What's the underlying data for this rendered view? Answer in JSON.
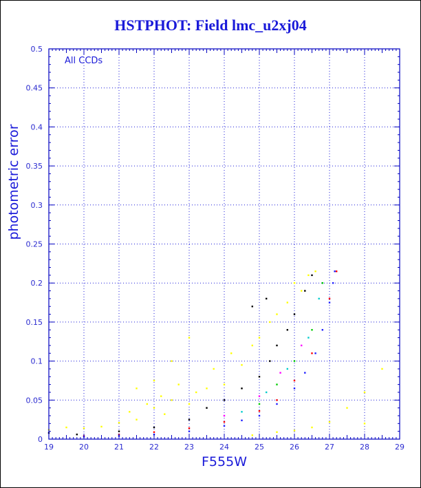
{
  "title": "HSTPHOT: Field lmc_u2xj04",
  "chart_data": {
    "type": "scatter",
    "title": "HSTPHOT: Field lmc_u2xj04",
    "xlabel": "F555W",
    "ylabel": "photometric error",
    "xlim": [
      19,
      29
    ],
    "ylim": [
      0,
      0.5
    ],
    "xticks": [
      "19",
      "20",
      "21",
      "22",
      "23",
      "24",
      "25",
      "26",
      "27",
      "28",
      "29"
    ],
    "yticks": [
      "0",
      "0.05",
      "0.1",
      "0.15",
      "0.2",
      "0.25",
      "0.3",
      "0.35",
      "0.4",
      "0.45",
      "0.5"
    ],
    "annotation": "All CCDs",
    "grid": true,
    "error_cap": 0.215,
    "series": [
      {
        "color": "#ffff00",
        "points": [
          [
            19.0,
            0.012
          ],
          [
            19.5,
            0.015
          ],
          [
            20.0,
            0.014
          ],
          [
            20.5,
            0.016
          ],
          [
            21.0,
            0.021
          ],
          [
            21.3,
            0.035
          ],
          [
            21.5,
            0.025
          ],
          [
            21.8,
            0.045
          ],
          [
            22.0,
            0.04
          ],
          [
            22.2,
            0.055
          ],
          [
            22.3,
            0.032
          ],
          [
            22.5,
            0.05
          ],
          [
            22.7,
            0.07
          ],
          [
            23.0,
            0.045
          ],
          [
            23.2,
            0.06
          ],
          [
            23.5,
            0.065
          ],
          [
            23.7,
            0.09
          ],
          [
            24.0,
            0.07
          ],
          [
            24.2,
            0.11
          ],
          [
            24.5,
            0.095
          ],
          [
            24.8,
            0.12
          ],
          [
            25.0,
            0.13
          ],
          [
            25.3,
            0.15
          ],
          [
            25.5,
            0.16
          ],
          [
            25.8,
            0.175
          ],
          [
            26.0,
            0.2
          ],
          [
            26.2,
            0.19
          ],
          [
            26.4,
            0.21
          ],
          [
            26.6,
            0.215
          ],
          [
            21.5,
            0.065
          ],
          [
            22.0,
            0.075
          ],
          [
            22.5,
            0.1
          ],
          [
            23.0,
            0.13
          ],
          [
            24.8,
            0.005
          ],
          [
            25.5,
            0.009
          ],
          [
            26.0,
            0.011
          ],
          [
            26.5,
            0.015
          ],
          [
            27.0,
            0.022
          ],
          [
            27.5,
            0.04
          ],
          [
            28.0,
            0.06
          ],
          [
            28.5,
            0.09
          ],
          [
            28.0,
            0.02
          ]
        ]
      },
      {
        "color": "#000000",
        "points": [
          [
            19.0,
            0.008
          ],
          [
            19.8,
            0.006
          ],
          [
            21.0,
            0.01
          ],
          [
            22.0,
            0.015
          ],
          [
            23.0,
            0.025
          ],
          [
            23.5,
            0.04
          ],
          [
            24.0,
            0.05
          ],
          [
            24.5,
            0.065
          ],
          [
            25.0,
            0.08
          ],
          [
            25.3,
            0.1
          ],
          [
            25.5,
            0.12
          ],
          [
            25.8,
            0.14
          ],
          [
            26.0,
            0.16
          ],
          [
            26.3,
            0.19
          ],
          [
            26.5,
            0.21
          ],
          [
            24.8,
            0.17
          ],
          [
            25.2,
            0.18
          ]
        ]
      },
      {
        "color": "#ff0000",
        "points": [
          [
            20.0,
            0.004
          ],
          [
            21.0,
            0.006
          ],
          [
            22.0,
            0.009
          ],
          [
            23.0,
            0.014
          ],
          [
            24.0,
            0.022
          ],
          [
            25.0,
            0.036
          ],
          [
            25.5,
            0.05
          ],
          [
            26.0,
            0.075
          ],
          [
            26.5,
            0.11
          ],
          [
            27.0,
            0.18
          ],
          [
            27.2,
            0.215
          ]
        ]
      },
      {
        "color": "#00cc00",
        "points": [
          [
            25.0,
            0.045
          ],
          [
            25.5,
            0.07
          ],
          [
            26.0,
            0.1
          ],
          [
            26.5,
            0.14
          ],
          [
            26.8,
            0.2
          ]
        ]
      },
      {
        "color": "#00cccc",
        "points": [
          [
            24.5,
            0.035
          ],
          [
            25.2,
            0.06
          ],
          [
            25.8,
            0.09
          ],
          [
            26.4,
            0.13
          ],
          [
            26.7,
            0.18
          ]
        ]
      },
      {
        "color": "#ff00ff",
        "points": [
          [
            24.0,
            0.03
          ],
          [
            25.0,
            0.055
          ],
          [
            25.6,
            0.085
          ],
          [
            26.2,
            0.12
          ]
        ]
      },
      {
        "color": "#1f1fff",
        "points": [
          [
            20.0,
            0.003
          ],
          [
            21.0,
            0.004
          ],
          [
            22.0,
            0.006
          ],
          [
            23.0,
            0.01
          ],
          [
            24.0,
            0.017
          ],
          [
            24.5,
            0.024
          ],
          [
            25.0,
            0.03
          ],
          [
            25.5,
            0.045
          ],
          [
            26.0,
            0.065
          ],
          [
            26.3,
            0.085
          ],
          [
            26.6,
            0.11
          ],
          [
            26.8,
            0.14
          ],
          [
            27.0,
            0.175
          ],
          [
            27.1,
            0.2
          ],
          [
            27.15,
            0.215
          ]
        ]
      }
    ]
  },
  "colors": {
    "axes": "#0000c0",
    "grid": "#1a1ad9",
    "title": "#1a1ad9",
    "background": "#ffffff"
  }
}
